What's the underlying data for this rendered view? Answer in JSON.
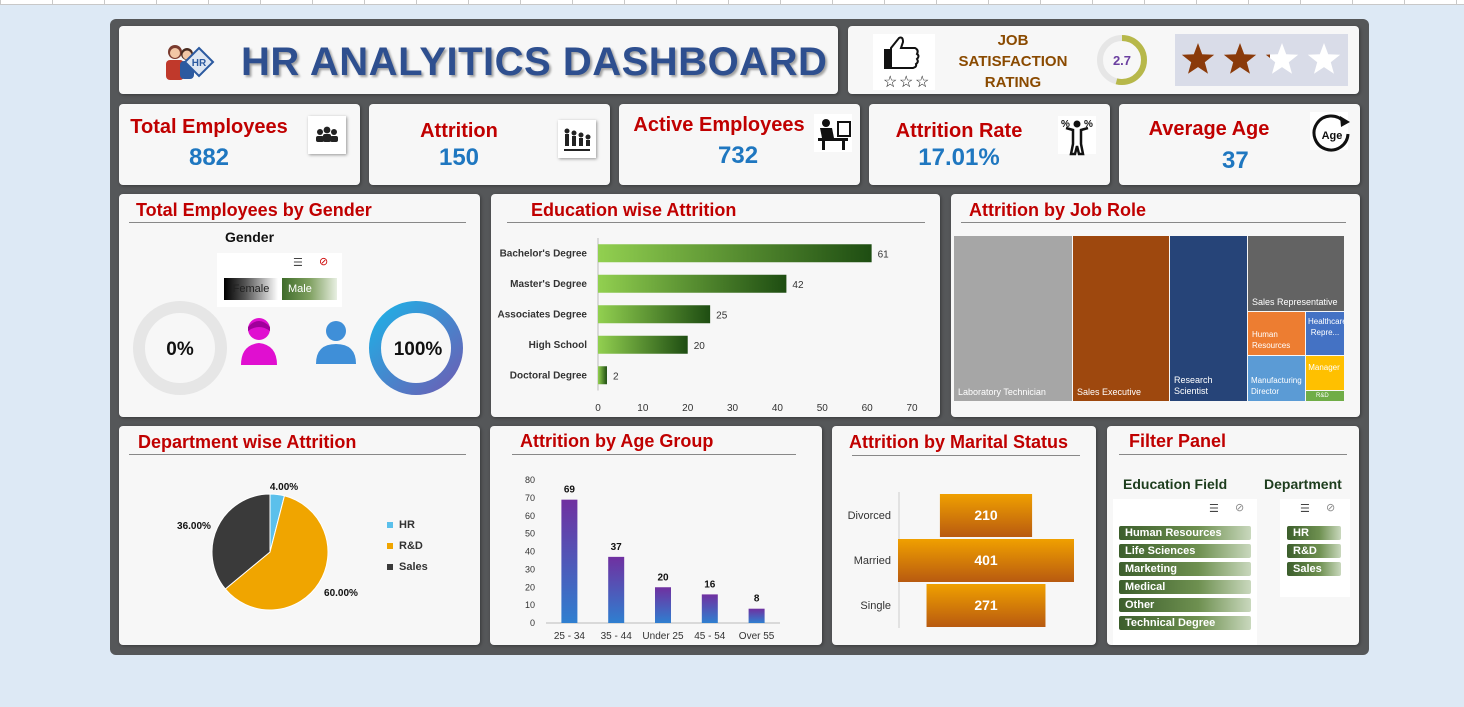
{
  "header": {
    "title": "HR ANALYITICS DASHBOARD",
    "rating_label_lines": [
      "JOB",
      "SATISFACTION",
      "RATING"
    ],
    "rating_value": "2.7",
    "rating_fraction": 0.54,
    "stars_filled": 2.5,
    "stars_total": 4
  },
  "kpis": [
    {
      "label": "Total Employees",
      "value": "882",
      "icon": "people-group-icon"
    },
    {
      "label": "Attrition",
      "value": "150",
      "icon": "people-leaving-icon"
    },
    {
      "label": "Active Employees",
      "value": "732",
      "icon": "person-at-desk-icon"
    },
    {
      "label": "Attrition Rate",
      "value": "17.01%",
      "icon": "percent-person-icon"
    },
    {
      "label": "Average Age",
      "value": "37",
      "icon": "age-cycle-icon"
    }
  ],
  "gender": {
    "title": "Total Employees by Gender",
    "slicer_title": "Gender",
    "options": [
      "Female",
      "Male"
    ],
    "female_pct": "0%",
    "male_pct": "100%",
    "female_value": 0,
    "male_value": 100
  },
  "education": {
    "title": "Education wise Attrition",
    "chart_data": {
      "type": "bar",
      "categories": [
        "Bachelor's Degree",
        "Master's Degree",
        "Associates Degree",
        "High School",
        "Doctoral Degree"
      ],
      "values": [
        61,
        42,
        25,
        20,
        2
      ],
      "xlim": [
        0,
        70
      ],
      "ticks": [
        0,
        10,
        20,
        30,
        40,
        50,
        60,
        70
      ]
    }
  },
  "jobrole": {
    "title": "Attrition by Job Role",
    "tiles": [
      {
        "label": "Laboratory Technician",
        "color": "#a6a6a6"
      },
      {
        "label": "Sales Executive",
        "color": "#9e480e"
      },
      {
        "label": "Research Scientist",
        "color": "#264478"
      },
      {
        "label": "Sales Representative",
        "color": "#636363"
      },
      {
        "label": "Human Resources",
        "color": "#ed7d31"
      },
      {
        "label": "Healthcare Repre...",
        "color": "#4472c4"
      },
      {
        "label": "Manufacturing Director",
        "color": "#5b9bd5"
      },
      {
        "label": "Manager",
        "color": "#ffc000"
      },
      {
        "label": "R&D",
        "color": "#70ad47"
      }
    ]
  },
  "department": {
    "title": "Department wise Attrition",
    "chart_data": {
      "type": "pie",
      "categories": [
        "HR",
        "R&D",
        "Sales"
      ],
      "values": [
        4.0,
        60.0,
        36.0
      ],
      "labels": [
        "4.00%",
        "60.00%",
        "36.00%"
      ],
      "colors": [
        "#5bc0eb",
        "#f0a500",
        "#3a3a3a"
      ],
      "legend": "right"
    }
  },
  "agegroup": {
    "title": "Attrition by Age Group",
    "chart_data": {
      "type": "bar",
      "categories": [
        "25 - 34",
        "35 - 44",
        "Under 25",
        "45 - 54",
        "Over 55"
      ],
      "values": [
        69,
        37,
        20,
        16,
        8
      ],
      "ylim": [
        0,
        80
      ],
      "ticks": [
        0,
        10,
        20,
        30,
        40,
        50,
        60,
        70,
        80
      ]
    }
  },
  "marital": {
    "title": "Attrition by Marital Status",
    "chart_data": {
      "type": "bar",
      "categories": [
        "Divorced",
        "Married",
        "Single"
      ],
      "values": [
        210,
        401,
        271
      ]
    }
  },
  "filters": {
    "title": "Filter Panel",
    "education_field": {
      "title": "Education Field",
      "options": [
        "Human Resources",
        "Life Sciences",
        "Marketing",
        "Medical",
        "Other",
        "Technical Degree"
      ]
    },
    "department": {
      "title": "Department",
      "options": [
        "HR",
        "R&D",
        "Sales"
      ]
    }
  }
}
